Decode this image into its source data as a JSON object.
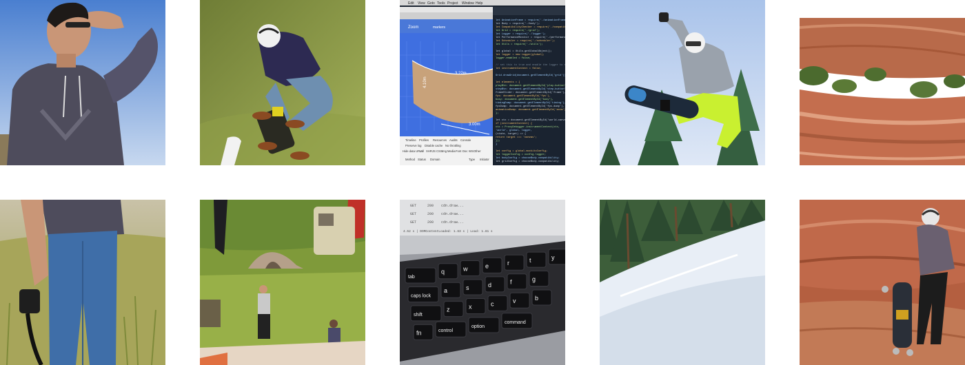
{
  "gallery": {
    "photos": [
      {
        "subject": "man in grey hoodie shading eyes under blue sky"
      },
      {
        "subject": "mountainboarder mid-air over grassy slope"
      },
      {
        "subject": "code editor with 3D terrain preview on laptop screen"
      },
      {
        "subject": "snowboarder jumping against blue sky and pine trees"
      },
      {
        "subject": "red sandstone canyon with green shrubs"
      },
      {
        "subject": "man in jeans holding camera strap in grass field"
      },
      {
        "subject": "mountainboard event with tent and flags on grassy hill"
      },
      {
        "subject": "close-up of backlit laptop keyboard"
      },
      {
        "subject": "snowy slope with pine forest"
      },
      {
        "subject": "rider with helmet carrying mountainboard in red canyon"
      }
    ]
  },
  "browser_menu": {
    "items": [
      "Edit",
      "View",
      "Goto",
      "Tools",
      "Project",
      "Window",
      "Help"
    ]
  },
  "devtools": {
    "left_tabs": [
      "Timeline",
      "Profiles",
      "Resources",
      "Audits",
      "Console"
    ],
    "options": [
      "Preserve log",
      "Disable cache",
      "No throttling"
    ],
    "filters": [
      "Hide data URLs",
      "All",
      "XHR",
      "JS",
      "CSS",
      "Img",
      "Media",
      "Font",
      "Doc",
      "WS",
      "Other"
    ],
    "columns": [
      "Method",
      "Status",
      "Domain",
      "Type",
      "Initiator"
    ]
  },
  "demo": {
    "toolbar_label": "Zoom",
    "markers_label": "markers",
    "dim_width": "3.22m",
    "dim_height": "4.10m",
    "dim_depth": "3.00m"
  },
  "network_rows": [
    {
      "method": "GET",
      "status": "200",
      "domain": "cdn.draw..."
    },
    {
      "method": "GET",
      "status": "200",
      "domain": "cdn.draw..."
    },
    {
      "method": "GET",
      "status": "200",
      "domain": "cdn.draw..."
    }
  ],
  "network_summary": "4.52 s | DOMContentLoaded: 1.63 s | Load: 1.81 s",
  "code_lines": [
    "let AnimationFrame = require('./animationFrame');",
    "let Body = require('./body');",
    "let CompatibilityChecker = require('./compatibilityChecker');",
    "let Grid = require('./grid');",
    "let Logger = require('./logger');",
    "let PerformanceMonitor = require('./performanceMonitor');",
    "let Scheduler = require('./scheduler');",
    "let Utils = require('./utils');",
    "",
    "let global = Utils.getGlobalObject();",
    "let logger = new Logger(global);",
    "logger.enabled = false;",
    "",
    "// set this to true and enable the logger to see",
    "let instrumentContext = false;",
    "",
    "Grid.drawGrid(document.getElementById('grid'));",
    "",
    "let elements = {",
    "  playBtn: document.getElementById('play-button'),",
    "  stepBtn: document.getElementById('step-button'),",
    "  frameSlider: document.getElementById('frame'),",
    "  fps: document.getElementById('fps'),",
    "  busy: document.getElementById('busy'),",
    "  timingDump: document.getElementById('timing'),",
    "  fpsDump: document.getElementById('fps-dump'),",
    "  animationDump: document.getElementById('anim')",
    "};",
    "",
    "let ctx = document.getElementById('world-canvas');",
    "if (instrumentContext) {",
    "  ctx = ProxyDebugger.instrumentContext(ctx,",
    "    'world', global, logger,",
    "    (state, target) => {",
    "      return target === 'canvas';",
    "    });",
    "}",
    "",
    "let config = global.mockitoConfig;",
    "let loggerConfig = config.logger;",
    "let bodyConfig = chooseBody.compatibility;",
    "let gridConfig = chooseBody.compatibility;"
  ],
  "keyboard": {
    "row1": [
      "tab",
      "q",
      "w",
      "e",
      "r",
      "t",
      "y"
    ],
    "row2": [
      "caps lock",
      "a",
      "s",
      "d",
      "f",
      "g"
    ],
    "row3": [
      "shift",
      "z",
      "x",
      "c",
      "v",
      "b"
    ],
    "row4": [
      "fn",
      "control",
      "option",
      "command"
    ]
  },
  "colors": {
    "sky": "#6f9cd6",
    "grass": "#8a9a3c",
    "editor_bg": "#1a2330",
    "canvas_blue": "#3f6fe0",
    "snow": "#e8eef6",
    "sandstone": "#b45f40",
    "hoodie": "#4e4c5c",
    "jeans": "#3f6ea8",
    "neon_pants": "#c9f030"
  }
}
